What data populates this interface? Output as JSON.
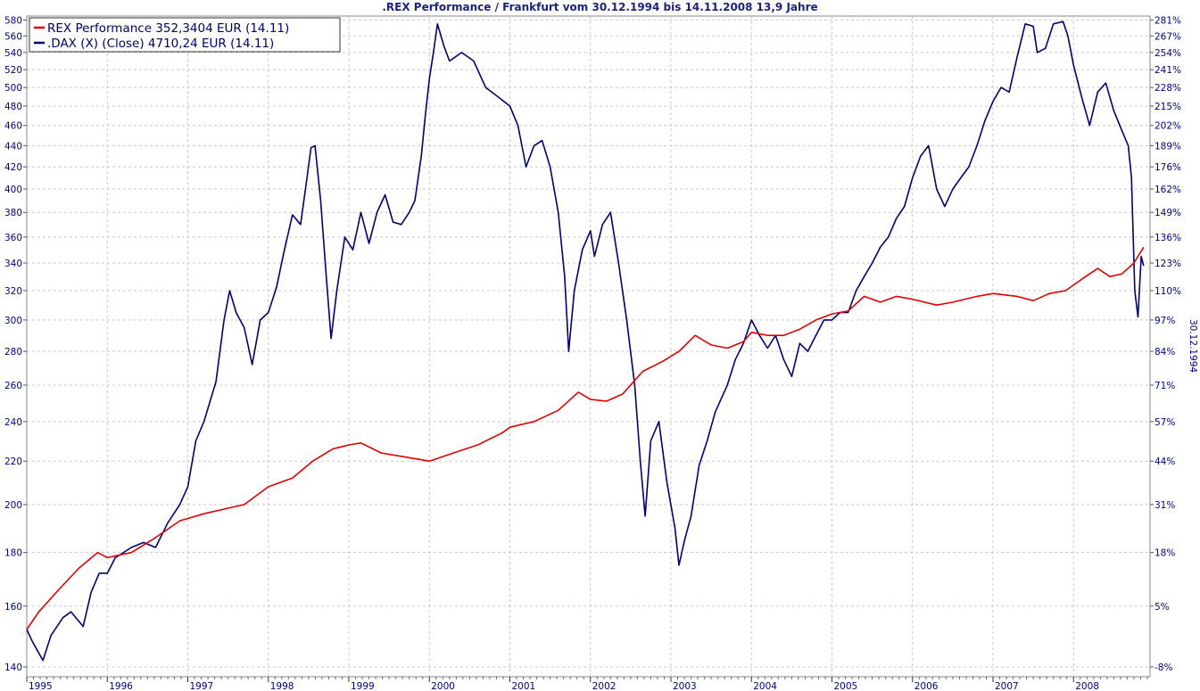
{
  "chart_data": {
    "type": "line",
    "title": ".REX Performance / Frankfurt vom 30.12.1994 bis 14.11.2008 13,9 Jahre",
    "xlabel": "",
    "ylabel_left": "",
    "ylabel_right": "30.12.1994",
    "scale": "log",
    "grid": true,
    "legend_position": "top-left",
    "ylim": [
      137,
      585
    ],
    "xlim": [
      1995.0,
      2008.95
    ],
    "x_ticks": [
      "1995",
      "1996",
      "1997",
      "1998",
      "1999",
      "2000",
      "2001",
      "2002",
      "2003",
      "2004",
      "2005",
      "2006",
      "2007",
      "2008"
    ],
    "y_ticks_left": [
      140,
      160,
      180,
      200,
      220,
      240,
      260,
      280,
      300,
      320,
      340,
      360,
      380,
      400,
      420,
      440,
      460,
      480,
      500,
      520,
      540,
      560,
      580
    ],
    "y_ticks_right": [
      "-8%",
      "5%",
      "18%",
      "31%",
      "44%",
      "57%",
      "71%",
      "84%",
      "97%",
      "110%",
      "123%",
      "136%",
      "149%",
      "162%",
      "176%",
      "189%",
      "202%",
      "215%",
      "228%",
      "241%",
      "254%",
      "267%",
      "281%"
    ],
    "series": [
      {
        "name": "REX Performance 352,3404 EUR (14.11)",
        "color": "#e00000",
        "points": [
          [
            1995.0,
            152
          ],
          [
            1995.15,
            158
          ],
          [
            1995.4,
            166
          ],
          [
            1995.65,
            174
          ],
          [
            1995.88,
            180
          ],
          [
            1996.0,
            178
          ],
          [
            1996.3,
            180
          ],
          [
            1996.6,
            186
          ],
          [
            1996.9,
            193
          ],
          [
            1997.2,
            196
          ],
          [
            1997.45,
            198
          ],
          [
            1997.7,
            200
          ],
          [
            1998.0,
            208
          ],
          [
            1998.3,
            212
          ],
          [
            1998.55,
            220
          ],
          [
            1998.8,
            226
          ],
          [
            1999.0,
            228
          ],
          [
            1999.15,
            229
          ],
          [
            1999.4,
            224
          ],
          [
            1999.7,
            222
          ],
          [
            2000.0,
            220
          ],
          [
            2000.3,
            224
          ],
          [
            2000.6,
            228
          ],
          [
            2000.9,
            234
          ],
          [
            2001.0,
            237
          ],
          [
            2001.3,
            240
          ],
          [
            2001.6,
            246
          ],
          [
            2001.85,
            256
          ],
          [
            2002.0,
            252
          ],
          [
            2002.2,
            251
          ],
          [
            2002.4,
            255
          ],
          [
            2002.65,
            268
          ],
          [
            2002.9,
            274
          ],
          [
            2003.1,
            280
          ],
          [
            2003.3,
            290
          ],
          [
            2003.5,
            284
          ],
          [
            2003.7,
            282
          ],
          [
            2003.9,
            286
          ],
          [
            2004.0,
            292
          ],
          [
            2004.2,
            290
          ],
          [
            2004.4,
            290
          ],
          [
            2004.6,
            294
          ],
          [
            2004.8,
            300
          ],
          [
            2005.0,
            304
          ],
          [
            2005.2,
            306
          ],
          [
            2005.4,
            316
          ],
          [
            2005.6,
            312
          ],
          [
            2005.8,
            316
          ],
          [
            2006.0,
            314
          ],
          [
            2006.3,
            310
          ],
          [
            2006.5,
            312
          ],
          [
            2006.8,
            316
          ],
          [
            2007.0,
            318
          ],
          [
            2007.3,
            316
          ],
          [
            2007.5,
            313
          ],
          [
            2007.7,
            318
          ],
          [
            2007.9,
            320
          ],
          [
            2008.0,
            324
          ],
          [
            2008.15,
            330
          ],
          [
            2008.3,
            336
          ],
          [
            2008.45,
            330
          ],
          [
            2008.6,
            332
          ],
          [
            2008.75,
            340
          ],
          [
            2008.87,
            352
          ]
        ]
      },
      {
        "name": ".DAX (X) (Close) 4710,24 EUR (14.11)",
        "color": "#00006e",
        "points": [
          [
            1995.0,
            152
          ],
          [
            1995.07,
            148
          ],
          [
            1995.2,
            142
          ],
          [
            1995.3,
            150
          ],
          [
            1995.45,
            156
          ],
          [
            1995.55,
            158
          ],
          [
            1995.7,
            153
          ],
          [
            1995.8,
            165
          ],
          [
            1995.9,
            172
          ],
          [
            1996.0,
            172
          ],
          [
            1996.1,
            178
          ],
          [
            1996.3,
            182
          ],
          [
            1996.45,
            184
          ],
          [
            1996.6,
            182
          ],
          [
            1996.75,
            192
          ],
          [
            1996.9,
            200
          ],
          [
            1997.0,
            208
          ],
          [
            1997.1,
            230
          ],
          [
            1997.2,
            240
          ],
          [
            1997.35,
            262
          ],
          [
            1997.45,
            300
          ],
          [
            1997.52,
            320
          ],
          [
            1997.6,
            305
          ],
          [
            1997.7,
            295
          ],
          [
            1997.8,
            272
          ],
          [
            1997.9,
            300
          ],
          [
            1998.0,
            305
          ],
          [
            1998.1,
            322
          ],
          [
            1998.2,
            350
          ],
          [
            1998.3,
            378
          ],
          [
            1998.4,
            370
          ],
          [
            1998.48,
            410
          ],
          [
            1998.53,
            438
          ],
          [
            1998.58,
            440
          ],
          [
            1998.65,
            390
          ],
          [
            1998.72,
            330
          ],
          [
            1998.78,
            288
          ],
          [
            1998.85,
            320
          ],
          [
            1998.95,
            360
          ],
          [
            1999.05,
            350
          ],
          [
            1999.15,
            380
          ],
          [
            1999.25,
            355
          ],
          [
            1999.35,
            380
          ],
          [
            1999.45,
            395
          ],
          [
            1999.55,
            372
          ],
          [
            1999.65,
            370
          ],
          [
            1999.75,
            380
          ],
          [
            1999.82,
            390
          ],
          [
            1999.9,
            430
          ],
          [
            1999.95,
            470
          ],
          [
            2000.0,
            510
          ],
          [
            2000.05,
            540
          ],
          [
            2000.1,
            575
          ],
          [
            2000.18,
            548
          ],
          [
            2000.25,
            530
          ],
          [
            2000.4,
            540
          ],
          [
            2000.55,
            530
          ],
          [
            2000.7,
            500
          ],
          [
            2000.85,
            490
          ],
          [
            2001.0,
            480
          ],
          [
            2001.1,
            460
          ],
          [
            2001.2,
            420
          ],
          [
            2001.3,
            440
          ],
          [
            2001.4,
            445
          ],
          [
            2001.5,
            420
          ],
          [
            2001.6,
            380
          ],
          [
            2001.68,
            330
          ],
          [
            2001.73,
            280
          ],
          [
            2001.8,
            320
          ],
          [
            2001.9,
            350
          ],
          [
            2002.0,
            365
          ],
          [
            2002.05,
            345
          ],
          [
            2002.15,
            370
          ],
          [
            2002.25,
            380
          ],
          [
            2002.35,
            340
          ],
          [
            2002.45,
            300
          ],
          [
            2002.55,
            260
          ],
          [
            2002.62,
            220
          ],
          [
            2002.68,
            195
          ],
          [
            2002.75,
            230
          ],
          [
            2002.85,
            240
          ],
          [
            2002.95,
            210
          ],
          [
            2003.05,
            190
          ],
          [
            2003.1,
            175
          ],
          [
            2003.17,
            185
          ],
          [
            2003.25,
            195
          ],
          [
            2003.35,
            218
          ],
          [
            2003.45,
            230
          ],
          [
            2003.55,
            245
          ],
          [
            2003.7,
            260
          ],
          [
            2003.8,
            275
          ],
          [
            2003.9,
            285
          ],
          [
            2004.0,
            300
          ],
          [
            2004.1,
            290
          ],
          [
            2004.2,
            282
          ],
          [
            2004.3,
            290
          ],
          [
            2004.4,
            275
          ],
          [
            2004.5,
            265
          ],
          [
            2004.6,
            285
          ],
          [
            2004.7,
            280
          ],
          [
            2004.8,
            290
          ],
          [
            2004.9,
            300
          ],
          [
            2005.0,
            300
          ],
          [
            2005.1,
            305
          ],
          [
            2005.2,
            305
          ],
          [
            2005.3,
            320
          ],
          [
            2005.4,
            330
          ],
          [
            2005.5,
            340
          ],
          [
            2005.6,
            352
          ],
          [
            2005.7,
            360
          ],
          [
            2005.8,
            375
          ],
          [
            2005.9,
            385
          ],
          [
            2006.0,
            410
          ],
          [
            2006.1,
            430
          ],
          [
            2006.2,
            440
          ],
          [
            2006.3,
            400
          ],
          [
            2006.4,
            385
          ],
          [
            2006.5,
            400
          ],
          [
            2006.6,
            410
          ],
          [
            2006.7,
            420
          ],
          [
            2006.8,
            440
          ],
          [
            2006.9,
            465
          ],
          [
            2007.0,
            485
          ],
          [
            2007.1,
            500
          ],
          [
            2007.2,
            495
          ],
          [
            2007.3,
            535
          ],
          [
            2007.4,
            575
          ],
          [
            2007.5,
            572
          ],
          [
            2007.55,
            540
          ],
          [
            2007.65,
            545
          ],
          [
            2007.75,
            575
          ],
          [
            2007.87,
            578
          ],
          [
            2007.93,
            560
          ],
          [
            2008.0,
            525
          ],
          [
            2008.1,
            490
          ],
          [
            2008.2,
            460
          ],
          [
            2008.3,
            495
          ],
          [
            2008.4,
            505
          ],
          [
            2008.5,
            475
          ],
          [
            2008.6,
            455
          ],
          [
            2008.68,
            440
          ],
          [
            2008.72,
            410
          ],
          [
            2008.76,
            320
          ],
          [
            2008.8,
            302
          ],
          [
            2008.84,
            345
          ],
          [
            2008.87,
            338
          ]
        ]
      }
    ]
  }
}
